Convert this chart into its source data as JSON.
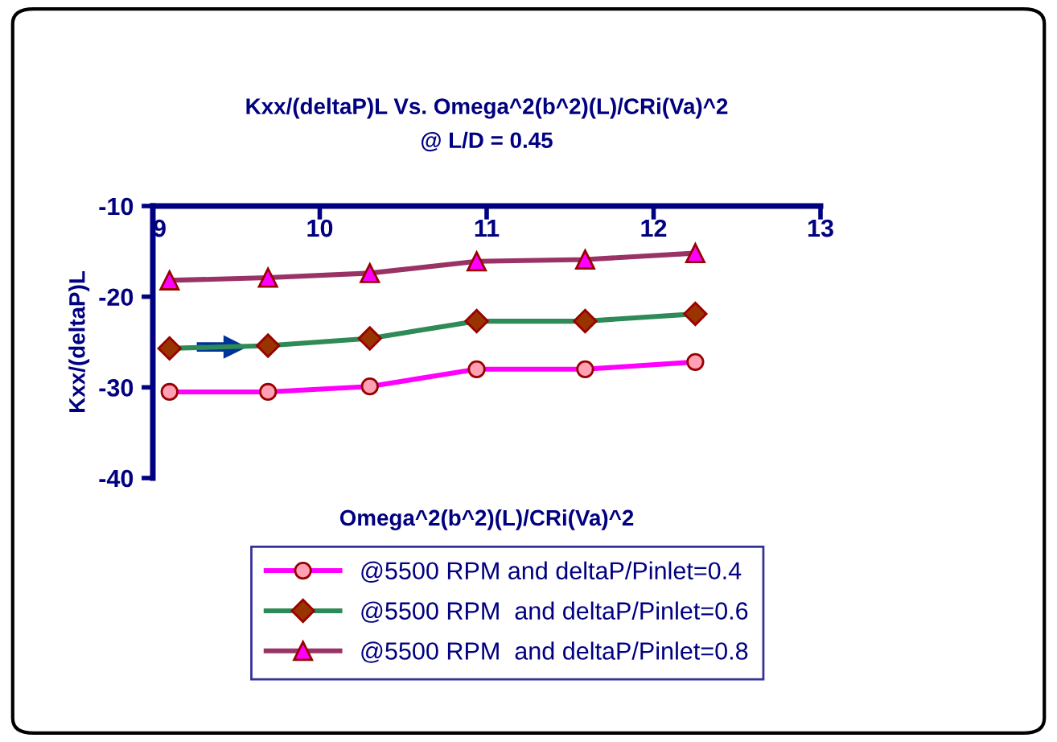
{
  "chart_data": {
    "type": "line",
    "title": "Kxx/(deltaP)L Vs. Omega^2(b^2)(L)/CRi(Va)^2\n@ L/D = 0.45",
    "xlabel": "Omega^2(b^2)(L)/CRi(Va)^2",
    "ylabel": "Kxx/(deltaP)L",
    "x": [
      9.1,
      9.69,
      10.3,
      10.94,
      11.59,
      12.25
    ],
    "series": [
      {
        "name": "@5500 RPM and deltaP/Pinlet=0.4",
        "color": "#ff00ff",
        "marker": "circle",
        "values": [
          -30.5,
          -30.5,
          -29.9,
          -28.0,
          -28.0,
          -27.2
        ]
      },
      {
        "name": "@5500 RPM  and deltaP/Pinlet=0.6",
        "color": "#2e8b57",
        "marker": "diamond",
        "values": [
          -25.7,
          -25.4,
          -24.6,
          -22.7,
          -22.7,
          -21.9
        ]
      },
      {
        "name": "@5500 RPM  and deltaP/Pinlet=0.8",
        "color": "#993366",
        "marker": "triangle",
        "values": [
          -18.2,
          -17.9,
          -17.4,
          -16.1,
          -15.9,
          -15.2
        ]
      }
    ],
    "xlim": [
      9,
      13
    ],
    "xticks": [
      9,
      10,
      11,
      12,
      13
    ],
    "ylim": [
      -40,
      -10
    ],
    "yticks": [
      -10,
      -20,
      -30,
      -40
    ],
    "grid": false,
    "legend": "bottom"
  }
}
